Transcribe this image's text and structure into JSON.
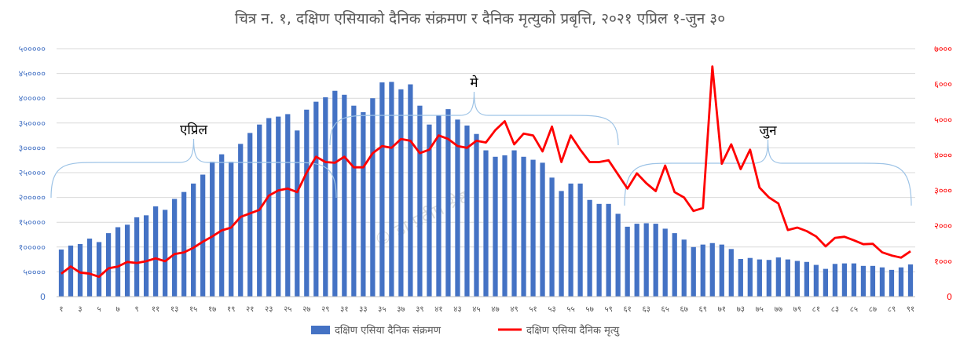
{
  "chart_data": {
    "type": "bar+line",
    "title": "चित्र न. १, दक्षिण एसियाको दैनिक संक्रमण र दैनिक मृत्युको प्रबृत्ति, २०२१ एप्रिल १-जुन ३०",
    "x": [
      1,
      2,
      3,
      4,
      5,
      6,
      7,
      8,
      9,
      10,
      11,
      12,
      13,
      14,
      15,
      16,
      17,
      18,
      19,
      20,
      21,
      22,
      23,
      24,
      25,
      26,
      27,
      28,
      29,
      30,
      31,
      32,
      33,
      34,
      35,
      36,
      37,
      38,
      39,
      40,
      41,
      42,
      43,
      44,
      45,
      46,
      47,
      48,
      49,
      50,
      51,
      52,
      53,
      54,
      55,
      56,
      57,
      58,
      59,
      60,
      61,
      62,
      63,
      64,
      65,
      66,
      67,
      68,
      69,
      70,
      71,
      72,
      73,
      74,
      75,
      76,
      77,
      78,
      79,
      80,
      81,
      82,
      83,
      84,
      85,
      86,
      87,
      88,
      89,
      90,
      91
    ],
    "x_tick_labels": [
      "१",
      "३",
      "५",
      "७",
      "९",
      "११",
      "१३",
      "१५",
      "१७",
      "१९",
      "२१",
      "२३",
      "२५",
      "२७",
      "२९",
      "३१",
      "३३",
      "३५",
      "३७",
      "३९",
      "४१",
      "४३",
      "४५",
      "४७",
      "४९",
      "५१",
      "५३",
      "५५",
      "५७",
      "५९",
      "६१",
      "६३",
      "६५",
      "६७",
      "६९",
      "७१",
      "७३",
      "७५",
      "७७",
      "७९",
      "८१",
      "८३",
      "८५",
      "८७",
      "८९",
      "९१"
    ],
    "left_axis": {
      "ylim": [
        0,
        500000
      ],
      "ticks": [
        "0",
        "५००००",
        "१०००००",
        "१५००००",
        "२०००००",
        "२५००००",
        "३०००००",
        "३५००००",
        "४०००००",
        "४५००००",
        "५०००००"
      ]
    },
    "right_axis": {
      "ylim": [
        0,
        7000
      ],
      "ticks": [
        "0",
        "१०००",
        "२०००",
        "३०००",
        "४०००",
        "५०००",
        "६०००",
        "७०००"
      ]
    },
    "series": [
      {
        "name": "दक्षिण एसिया  दैनिक संक्रमण",
        "type": "bar",
        "axis": "left",
        "color": "#4472C4",
        "values": [
          95000,
          103000,
          106000,
          117000,
          110000,
          128000,
          140000,
          145000,
          160000,
          164000,
          182000,
          175000,
          197000,
          211000,
          228000,
          246000,
          272000,
          287000,
          272000,
          308000,
          330000,
          347000,
          360000,
          363000,
          368000,
          335000,
          377000,
          393000,
          402000,
          415000,
          407000,
          385000,
          372000,
          400000,
          432000,
          433000,
          418000,
          428000,
          385000,
          347000,
          365000,
          378000,
          357000,
          345000,
          328000,
          295000,
          282000,
          285000,
          295000,
          282000,
          276000,
          270000,
          240000,
          213000,
          228000,
          228000,
          195000,
          187000,
          187000,
          167000,
          141000,
          147000,
          148000,
          147000,
          137000,
          128000,
          115000,
          100000,
          105000,
          108000,
          105000,
          96000,
          76000,
          78000,
          75000,
          74000,
          79000,
          75000,
          72000,
          70000,
          64000,
          56000,
          66000,
          67000,
          67000,
          62000,
          62000,
          59000,
          54000,
          59000,
          65000
        ]
      },
      {
        "name": "दक्षिण एसिया  दैनिक मृत्यु",
        "type": "line",
        "axis": "right",
        "color": "#FF0000",
        "values": [
          650,
          850,
          680,
          650,
          560,
          800,
          850,
          980,
          950,
          1000,
          1080,
          1000,
          1200,
          1250,
          1380,
          1550,
          1700,
          1870,
          1950,
          2250,
          2350,
          2450,
          2850,
          3000,
          3050,
          2950,
          3500,
          3950,
          3800,
          3780,
          3950,
          3650,
          3650,
          4050,
          4250,
          4200,
          4450,
          4400,
          4050,
          4150,
          4550,
          4450,
          4250,
          4200,
          4400,
          4350,
          4700,
          4950,
          4300,
          4600,
          4550,
          4100,
          4800,
          3800,
          4550,
          4150,
          3800,
          3800,
          3850,
          3450,
          3050,
          3480,
          3200,
          2980,
          3700,
          2950,
          2800,
          2420,
          2500,
          6500,
          3750,
          4300,
          3600,
          4150,
          3080,
          2800,
          2630,
          1880,
          1950,
          1850,
          1700,
          1420,
          1660,
          1690,
          1590,
          1480,
          1490,
          1250,
          1160,
          1100,
          1280
        ]
      }
    ],
    "annotations": [
      {
        "label": "एप्रिल"
      },
      {
        "label": "मे"
      },
      {
        "label": "जुन"
      }
    ],
    "watermark": "© डा प्रदीप श्रेष्ठ",
    "legend_position": "bottom"
  }
}
